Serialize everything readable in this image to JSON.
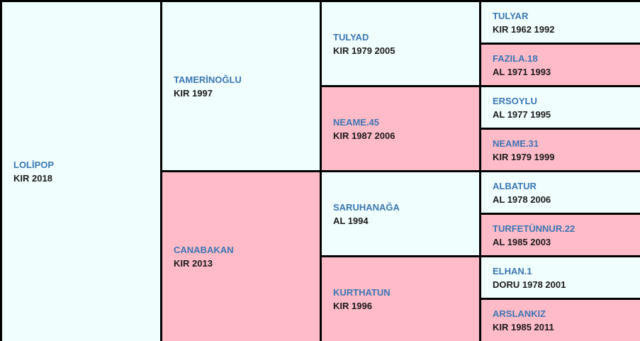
{
  "colors": {
    "male_bg": "#f0fffe",
    "female_bg": "#ffbbc8",
    "name": "#3b76b3",
    "border": "#000000"
  },
  "horse": {
    "name": "LOLİPOP",
    "info": "KIR 2018"
  },
  "sire": {
    "name": "TAMERİNOĞLU",
    "info": "KIR 1997"
  },
  "dam": {
    "name": "CANABAKAN",
    "info": "KIR 2013"
  },
  "sire_sire": {
    "name": "TULYAD",
    "info": "KIR 1979 2005"
  },
  "sire_dam": {
    "name": "NEAME.45",
    "info": "KIR 1987 2006"
  },
  "dam_sire": {
    "name": "SARUHANAĞA",
    "info": "AL 1994"
  },
  "dam_dam": {
    "name": "KURTHATUN",
    "info": "KIR 1996"
  },
  "gen3": [
    {
      "name": "TULYAR",
      "info": "KIR 1962 1992"
    },
    {
      "name": "FAZILA.18",
      "info": "AL 1971 1993"
    },
    {
      "name": "ERSOYLU",
      "info": "AL 1977 1995"
    },
    {
      "name": "NEAME.31",
      "info": "KIR 1979 1999"
    },
    {
      "name": "ALBATUR",
      "info": "AL 1978 2006"
    },
    {
      "name": "TURFETÜNNUR.22",
      "info": "AL 1985 2003"
    },
    {
      "name": "ELHAN.1",
      "info": "DORU 1978 2001"
    },
    {
      "name": "ARSLANKIZ",
      "info": "KIR 1985 2011"
    }
  ]
}
